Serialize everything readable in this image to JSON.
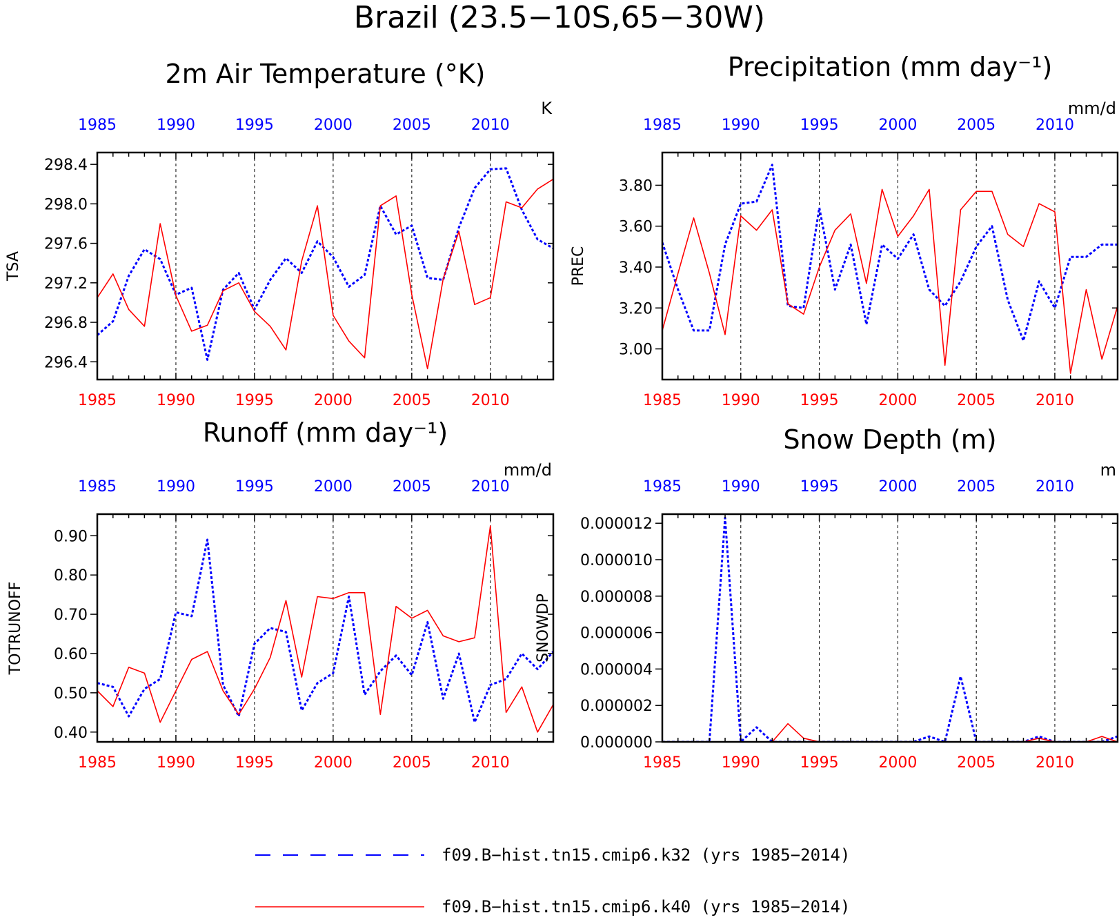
{
  "title": "Brazil (23.5−10S,65−30W)",
  "colors": {
    "series1": "#0000ff",
    "series2": "#ff0000",
    "axis": "#000000",
    "grid": "#000000"
  },
  "legend": [
    {
      "label": "f09.B−hist.tn15.cmip6.k32 (yrs 1985−2014)",
      "color": "#0000ff",
      "style": "dashed"
    },
    {
      "label": "f09.B−hist.tn15.cmip6.k40 (yrs 1985−2014)",
      "color": "#ff0000",
      "style": "solid"
    }
  ],
  "chart_data": [
    {
      "type": "line",
      "title": "2m Air Temperature (°K)",
      "ylabel": "TSA",
      "unit": "K",
      "xlim": [
        1985,
        2014
      ],
      "ylim": [
        296.22,
        298.52
      ],
      "yticks": [
        "296.4",
        "296.8",
        "297.2",
        "297.6",
        "298.0",
        "298.4"
      ],
      "xticks": [
        "1985",
        "1990",
        "1995",
        "2000",
        "2005",
        "2010"
      ],
      "x": [
        1985,
        1986,
        1987,
        1988,
        1989,
        1990,
        1991,
        1992,
        1993,
        1994,
        1995,
        1996,
        1997,
        1998,
        1999,
        2000,
        2001,
        2002,
        2003,
        2004,
        2005,
        2006,
        2007,
        2008,
        2009,
        2010,
        2011,
        2012,
        2013,
        2014
      ],
      "series": [
        {
          "values": [
            296.67,
            296.81,
            297.27,
            297.54,
            297.44,
            297.08,
            297.15,
            296.42,
            297.13,
            297.3,
            296.93,
            297.23,
            297.45,
            297.3,
            297.62,
            297.46,
            297.16,
            297.28,
            297.98,
            297.69,
            297.78,
            297.25,
            297.23,
            297.76,
            298.16,
            298.35,
            298.36,
            297.94,
            297.64,
            297.55
          ]
        },
        {
          "values": [
            297.05,
            297.29,
            296.93,
            296.76,
            297.8,
            297.07,
            296.71,
            296.77,
            297.12,
            297.2,
            296.91,
            296.76,
            296.52,
            297.42,
            297.98,
            296.87,
            296.61,
            296.44,
            297.98,
            298.08,
            297.08,
            296.33,
            297.24,
            297.72,
            296.98,
            297.05,
            298.02,
            297.96,
            298.15,
            298.25
          ]
        }
      ]
    },
    {
      "type": "line",
      "title": "Precipitation (mm day⁻¹)",
      "ylabel": "PREC",
      "unit": "mm/d",
      "xlim": [
        1985,
        2014
      ],
      "ylim": [
        2.85,
        3.96
      ],
      "yticks": [
        "3.00",
        "3.20",
        "3.40",
        "3.60",
        "3.80"
      ],
      "xticks": [
        "1985",
        "1990",
        "1995",
        "2000",
        "2005",
        "2010"
      ],
      "x": [
        1985,
        1986,
        1987,
        1988,
        1989,
        1990,
        1991,
        1992,
        1993,
        1994,
        1995,
        1996,
        1997,
        1998,
        1999,
        2000,
        2001,
        2002,
        2003,
        2004,
        2005,
        2006,
        2007,
        2008,
        2009,
        2010,
        2011,
        2012,
        2013,
        2014
      ],
      "series": [
        {
          "values": [
            3.52,
            3.29,
            3.09,
            3.09,
            3.51,
            3.71,
            3.72,
            3.9,
            3.21,
            3.2,
            3.69,
            3.29,
            3.51,
            3.12,
            3.51,
            3.44,
            3.56,
            3.29,
            3.21,
            3.33,
            3.5,
            3.6,
            3.24,
            3.04,
            3.33,
            3.2,
            3.45,
            3.45,
            3.51,
            3.51
          ]
        },
        {
          "values": [
            3.09,
            3.37,
            3.64,
            3.37,
            3.07,
            3.65,
            3.58,
            3.68,
            3.22,
            3.17,
            3.4,
            3.58,
            3.66,
            3.32,
            3.78,
            3.55,
            3.65,
            3.78,
            2.92,
            3.68,
            3.77,
            3.77,
            3.56,
            3.5,
            3.71,
            3.67,
            2.88,
            3.29,
            2.95,
            3.21
          ]
        }
      ]
    },
    {
      "type": "line",
      "title": "Runoff (mm day⁻¹)",
      "ylabel": "TOTRUNOFF",
      "unit": "mm/d",
      "xlim": [
        1985,
        2014
      ],
      "ylim": [
        0.375,
        0.955
      ],
      "yticks": [
        "0.40",
        "0.50",
        "0.60",
        "0.70",
        "0.80",
        "0.90"
      ],
      "xticks": [
        "1985",
        "1990",
        "1995",
        "2000",
        "2005",
        "2010"
      ],
      "x": [
        1985,
        1986,
        1987,
        1988,
        1989,
        1990,
        1991,
        1992,
        1993,
        1994,
        1995,
        1996,
        1997,
        1998,
        1999,
        2000,
        2001,
        2002,
        2003,
        2004,
        2005,
        2006,
        2007,
        2008,
        2009,
        2010,
        2011,
        2012,
        2013,
        2014
      ],
      "series": [
        {
          "values": [
            0.525,
            0.515,
            0.44,
            0.51,
            0.535,
            0.705,
            0.695,
            0.89,
            0.52,
            0.44,
            0.625,
            0.665,
            0.655,
            0.455,
            0.525,
            0.55,
            0.745,
            0.495,
            0.555,
            0.595,
            0.545,
            0.68,
            0.485,
            0.6,
            0.425,
            0.52,
            0.535,
            0.6,
            0.56,
            0.605
          ]
        },
        {
          "values": [
            0.505,
            0.465,
            0.565,
            0.55,
            0.425,
            0.505,
            0.585,
            0.605,
            0.505,
            0.445,
            0.51,
            0.59,
            0.735,
            0.54,
            0.745,
            0.74,
            0.755,
            0.755,
            0.445,
            0.72,
            0.69,
            0.71,
            0.645,
            0.63,
            0.64,
            0.925,
            0.45,
            0.515,
            0.4,
            0.47
          ]
        }
      ]
    },
    {
      "type": "line",
      "title": "Snow Depth (m)",
      "ylabel": "SNOWDP",
      "unit": "m",
      "xlim": [
        1985,
        2014
      ],
      "ylim": [
        0.0,
        1.25e-05
      ],
      "yticks": [
        "0.000000",
        "0.000002",
        "0.000004",
        "0.000006",
        "0.000008",
        "0.000010",
        "0.000012"
      ],
      "xticks": [
        "1985",
        "1990",
        "1995",
        "2000",
        "2005",
        "2010"
      ],
      "x": [
        1985,
        1986,
        1987,
        1988,
        1989,
        1990,
        1991,
        1992,
        1993,
        1994,
        1995,
        1996,
        1997,
        1998,
        1999,
        2000,
        2001,
        2002,
        2003,
        2004,
        2005,
        2006,
        2007,
        2008,
        2009,
        2010,
        2011,
        2012,
        2013,
        2014
      ],
      "series": [
        {
          "values": [
            0,
            0,
            0,
            0,
            1.23e-05,
            0,
            8e-07,
            0,
            0,
            0,
            0,
            0,
            0,
            0,
            0,
            0,
            0,
            3e-07,
            0,
            3.6e-06,
            0,
            0,
            0,
            0,
            3e-07,
            0,
            0,
            0,
            0,
            3e-07
          ]
        },
        {
          "values": [
            0,
            0,
            0,
            0,
            0,
            0,
            0,
            0,
            1e-06,
            2e-07,
            0,
            0,
            0,
            0,
            0,
            0,
            0,
            0,
            0,
            0,
            0,
            0,
            0,
            0,
            2e-07,
            0,
            0,
            0,
            3e-07,
            0
          ]
        }
      ]
    }
  ]
}
